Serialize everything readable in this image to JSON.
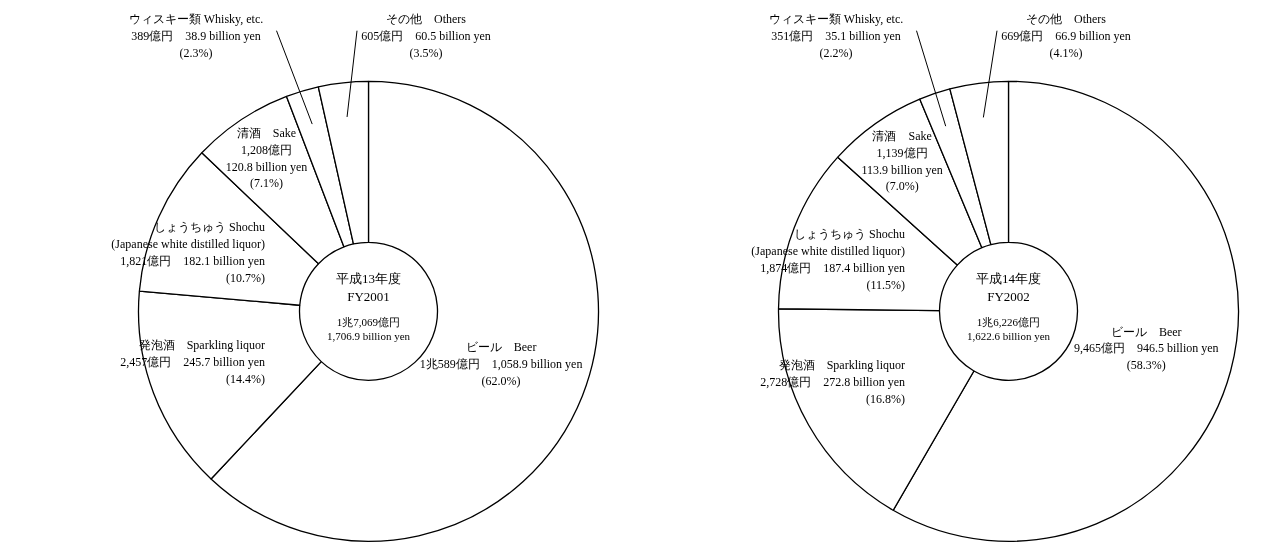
{
  "chart_data": [
    {
      "type": "donut",
      "title": "平成13年度\nFY2001",
      "subtitle": "1兆7,069億円\n1,706.9 billion yen",
      "categories": [
        "ビール　Beer",
        "発泡酒　Sparkling liquor",
        "しょうちゅう Shochu\n(Japanese white distilled liquor)",
        "清酒　Sake",
        "ウィスキー類 Whisky, etc.",
        "その他　Others"
      ],
      "values": [
        62.0,
        14.4,
        10.7,
        7.1,
        2.3,
        3.5
      ],
      "value_labels": [
        "1兆589億円　1,058.9 billion yen\n(62.0%)",
        "2,457億円　245.7 billion yen\n(14.4%)",
        "1,821億円　182.1 billion yen\n(10.7%)",
        "1,208億円\n120.8 billion yen\n(7.1%)",
        "389億円　38.9 billion yen\n(2.3%)",
        "605億円　60.5 billion yen\n(3.5%)"
      ],
      "colors": [
        "#ffffff",
        "#ffffff",
        "#ffffff",
        "#ffffff",
        "#ffffff",
        "#ffffff"
      ]
    },
    {
      "type": "donut",
      "title": "平成14年度\nFY2002",
      "subtitle": "1兆6,226億円\n1,622.6 billion yen",
      "categories": [
        "ビール　Beer",
        "発泡酒　Sparkling liquor",
        "しょうちゅう Shochu\n(Japanese white distilled liquor)",
        "清酒　Sake",
        "ウィスキー類 Whisky, etc.",
        "その他　Others"
      ],
      "values": [
        58.3,
        16.8,
        11.5,
        7.0,
        2.2,
        4.1
      ],
      "value_labels": [
        "9,465億円　946.5 billion yen\n(58.3%)",
        "2,728億円　272.8 billion yen\n(16.8%)",
        "1,874億円　187.4 billion yen\n(11.5%)",
        "1,139億円\n113.9 billion yen\n(7.0%)",
        "351億円　35.1 billion yen\n(2.2%)",
        "669億円　66.9 billion yen\n(4.1%)"
      ],
      "colors": [
        "#ffffff",
        "#ffffff",
        "#ffffff",
        "#ffffff",
        "#ffffff",
        "#ffffff"
      ]
    }
  ]
}
